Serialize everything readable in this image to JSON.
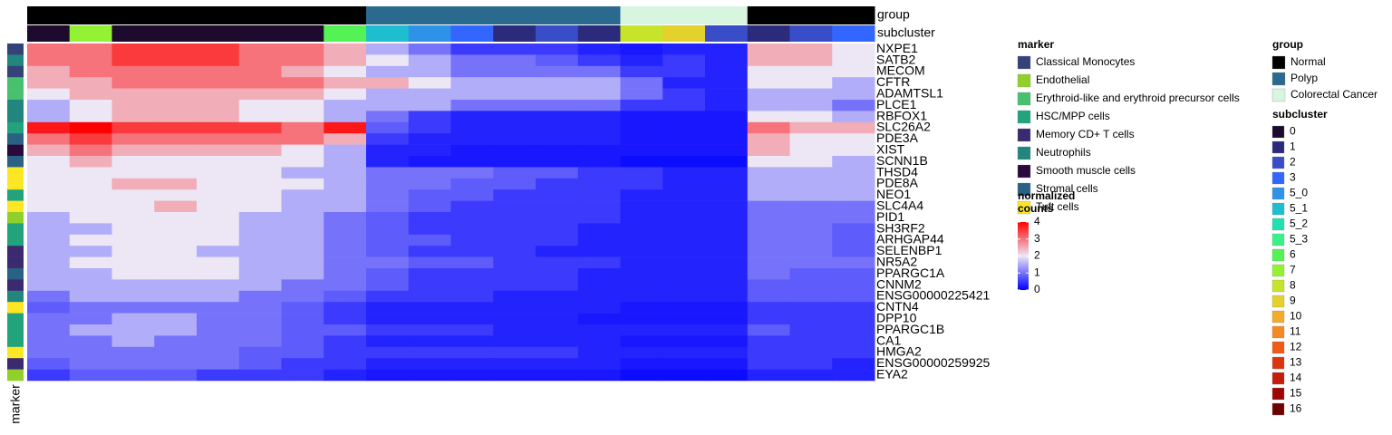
{
  "chart_data": {
    "type": "heatmap",
    "clim": [
      0,
      4
    ],
    "colors": [
      "#0000ff",
      "#ece6f5",
      "#ff0000"
    ],
    "track_labels": {
      "group": "group",
      "subcluster": "subcluster",
      "marker": "marker"
    },
    "group_track": [
      "Normal",
      "Normal",
      "Normal",
      "Normal",
      "Normal",
      "Normal",
      "Normal",
      "Normal",
      "Polyp",
      "Polyp",
      "Polyp",
      "Polyp",
      "Polyp",
      "Polyp",
      "Colorectal Cancer",
      "Colorectal Cancer",
      "Colorectal Cancer",
      "Normal",
      "Normal",
      "Normal"
    ],
    "subcluster_track": [
      "0",
      "7",
      "0",
      "0",
      "0",
      "0",
      "0",
      "6",
      "5_1",
      "5_0",
      "3",
      "1",
      "2",
      "1",
      "8",
      "9",
      "2",
      "1",
      "2",
      "3"
    ],
    "rows": [
      {
        "name": "NXPE1",
        "marker": "Classical Monocytes",
        "values": [
          3,
          3,
          3.5,
          3.5,
          3.5,
          3,
          3,
          2.5,
          1.5,
          1,
          0.5,
          0.5,
          0.5,
          0.3,
          0.2,
          0.3,
          0.3,
          2.5,
          2.5,
          2
        ]
      },
      {
        "name": "SATB2",
        "marker": "Neutrophils",
        "values": [
          3,
          3,
          3.5,
          3.5,
          3.5,
          3,
          3,
          2.5,
          2,
          1.5,
          1,
          1,
          0.8,
          0.5,
          0.3,
          0.5,
          0.3,
          2.5,
          2.5,
          2
        ]
      },
      {
        "name": "MECOM",
        "marker": "Classical Monocytes",
        "values": [
          2.5,
          3,
          3,
          3,
          3,
          3,
          2.5,
          2,
          1.5,
          1.5,
          1,
          1,
          1,
          1,
          0.5,
          0.5,
          0.3,
          2,
          2,
          2
        ]
      },
      {
        "name": "CFTR",
        "marker": "Erythroid-like and erythroid precursor cells",
        "values": [
          2.5,
          2.5,
          3,
          3,
          3,
          3,
          3,
          2.5,
          2.5,
          2,
          1.5,
          1.5,
          1.5,
          1.5,
          1,
          0.3,
          0.3,
          2,
          2,
          1.5
        ]
      },
      {
        "name": "ADAMTSL1",
        "marker": "Erythroid-like and erythroid precursor cells",
        "values": [
          2,
          2.5,
          2.5,
          2.5,
          2.5,
          2.5,
          2.5,
          2,
          1.5,
          1.5,
          1.5,
          1.5,
          1.5,
          1.5,
          1,
          0.5,
          0.3,
          1.5,
          1.5,
          1.5
        ]
      },
      {
        "name": "PLCE1",
        "marker": "Neutrophils",
        "values": [
          1.5,
          2,
          2.5,
          2.5,
          2.5,
          2,
          2,
          1.5,
          1.5,
          1.5,
          1,
          1,
          1,
          1,
          0.5,
          0.5,
          0.3,
          1.5,
          1.5,
          1
        ]
      },
      {
        "name": "RBFOX1",
        "marker": "Neutrophils",
        "values": [
          1.5,
          2,
          2.5,
          2.5,
          2.5,
          2,
          2,
          1.5,
          1,
          0.5,
          0.3,
          0.3,
          0.3,
          0.3,
          0.2,
          0.2,
          0.2,
          2,
          2,
          1.5
        ]
      },
      {
        "name": "SLC26A2",
        "marker": "HSC/MPP cells",
        "values": [
          3.8,
          4,
          3.5,
          3.5,
          3.5,
          3.5,
          3,
          3.8,
          0.8,
          0.5,
          0.3,
          0.3,
          0.3,
          0.3,
          0.2,
          0.2,
          0.2,
          3,
          2.5,
          2.5
        ]
      },
      {
        "name": "PDE3A",
        "marker": "Stromal cells",
        "values": [
          3,
          3.5,
          3,
          3,
          3,
          3,
          3,
          2.5,
          0.5,
          0.3,
          0.3,
          0.3,
          0.3,
          0.3,
          0.2,
          0.2,
          0.2,
          2.5,
          2,
          2
        ]
      },
      {
        "name": "XIST",
        "marker": "Smooth muscle cells",
        "values": [
          2.5,
          3,
          2.5,
          2.5,
          2.5,
          2.5,
          2,
          1.5,
          0.3,
          0.3,
          0.2,
          0.2,
          0.2,
          0.2,
          0.2,
          0.2,
          0.2,
          2.5,
          2,
          2
        ]
      },
      {
        "name": "SCNN1B",
        "marker": "Stromal cells",
        "values": [
          2,
          2.5,
          2,
          2,
          2,
          2,
          2,
          1.5,
          0.3,
          0.2,
          0.2,
          0.2,
          0.2,
          0.2,
          0.1,
          0.1,
          0.1,
          2,
          2,
          1.5
        ]
      },
      {
        "name": "THSD4",
        "marker": "Tuft cells",
        "values": [
          2,
          2,
          2,
          2,
          2,
          2,
          1.5,
          1.5,
          1,
          1,
          1,
          0.8,
          0.8,
          0.5,
          0.5,
          0.3,
          0.3,
          1.5,
          1.5,
          1.5
        ]
      },
      {
        "name": "PDE8A",
        "marker": "Tuft cells",
        "values": [
          2,
          2,
          2.5,
          2.5,
          2,
          2,
          2,
          1.5,
          1,
          1,
          0.8,
          0.8,
          0.5,
          0.5,
          0.5,
          0.3,
          0.3,
          1.5,
          1.5,
          1.5
        ]
      },
      {
        "name": "NEO1",
        "marker": "HSC/MPP cells",
        "values": [
          2,
          2,
          2,
          2,
          2,
          2,
          1.5,
          1.5,
          1,
          0.8,
          0.8,
          0.5,
          0.5,
          0.5,
          0.3,
          0.3,
          0.3,
          1.5,
          1.5,
          1.5
        ]
      },
      {
        "name": "SLC4A4",
        "marker": "Tuft cells",
        "values": [
          2,
          2,
          2,
          2.5,
          2,
          2,
          1.5,
          1.5,
          1,
          0.8,
          0.5,
          0.5,
          0.5,
          0.5,
          0.3,
          0.3,
          0.3,
          1,
          1,
          1
        ]
      },
      {
        "name": "PID1",
        "marker": "Endothelial",
        "values": [
          1.5,
          2,
          2,
          2,
          2,
          1.5,
          1.5,
          1,
          0.8,
          0.5,
          0.5,
          0.5,
          0.5,
          0.5,
          0.3,
          0.3,
          0.3,
          1,
          1,
          1
        ]
      },
      {
        "name": "SH3RF2",
        "marker": "HSC/MPP cells",
        "values": [
          1.5,
          1.5,
          2,
          2,
          2,
          1.5,
          1.5,
          1,
          0.8,
          0.5,
          0.5,
          0.5,
          0.5,
          0.3,
          0.3,
          0.3,
          0.3,
          1,
          1,
          0.8
        ]
      },
      {
        "name": "ARHGAP44",
        "marker": "HSC/MPP cells",
        "values": [
          1.5,
          2,
          2,
          2,
          2,
          1.5,
          1.5,
          1,
          0.8,
          0.8,
          0.5,
          0.5,
          0.5,
          0.3,
          0.3,
          0.3,
          0.3,
          1,
          1,
          0.8
        ]
      },
      {
        "name": "SELENBP1",
        "marker": "Memory CD+ T cells",
        "values": [
          1.5,
          1.5,
          2,
          2,
          1.5,
          1.5,
          1.5,
          1,
          0.8,
          0.5,
          0.5,
          0.5,
          0.3,
          0.3,
          0.3,
          0.3,
          0.3,
          1,
          1,
          0.8
        ]
      },
      {
        "name": "NR5A2",
        "marker": "Memory CD+ T cells",
        "values": [
          1.5,
          2,
          2,
          2,
          2,
          1.5,
          1.5,
          1,
          1,
          0.8,
          0.8,
          0.5,
          0.5,
          0.5,
          0.3,
          0.3,
          0.3,
          1,
          1,
          1
        ]
      },
      {
        "name": "PPARGC1A",
        "marker": "Stromal cells",
        "values": [
          1.5,
          1.5,
          2,
          2,
          2,
          1.5,
          1.5,
          1,
          0.8,
          0.5,
          0.5,
          0.5,
          0.5,
          0.3,
          0.3,
          0.3,
          0.3,
          1,
          0.8,
          0.8
        ]
      },
      {
        "name": "CNNM2",
        "marker": "Memory CD+ T cells",
        "values": [
          1.5,
          1.5,
          1.5,
          1.5,
          1.5,
          1.5,
          1,
          1,
          0.8,
          0.5,
          0.5,
          0.5,
          0.5,
          0.3,
          0.3,
          0.3,
          0.3,
          0.8,
          0.8,
          0.8
        ]
      },
      {
        "name": "ENSG00000225421",
        "marker": "Neutrophils",
        "values": [
          1,
          1.5,
          1.5,
          1.5,
          1.5,
          1,
          1,
          0.8,
          0.5,
          0.5,
          0.5,
          0.3,
          0.3,
          0.3,
          0.3,
          0.3,
          0.3,
          0.8,
          0.8,
          0.8
        ]
      },
      {
        "name": "CNTN4",
        "marker": "Tuft cells",
        "values": [
          0.8,
          1,
          1,
          1,
          1,
          1,
          0.8,
          0.5,
          0.3,
          0.3,
          0.3,
          0.3,
          0.3,
          0.3,
          0.2,
          0.2,
          0.2,
          0.5,
          0.5,
          0.5
        ]
      },
      {
        "name": "DPP10",
        "marker": "HSC/MPP cells",
        "values": [
          1,
          1,
          1.5,
          1.5,
          1,
          1,
          0.8,
          0.5,
          0.3,
          0.3,
          0.3,
          0.3,
          0.3,
          0.2,
          0.2,
          0.2,
          0.2,
          0.5,
          0.5,
          0.5
        ]
      },
      {
        "name": "PPARGC1B",
        "marker": "HSC/MPP cells",
        "values": [
          1,
          1.5,
          1.5,
          1.5,
          1,
          1,
          0.8,
          0.8,
          0.5,
          0.5,
          0.5,
          0.3,
          0.3,
          0.3,
          0.3,
          0.3,
          0.3,
          0.8,
          0.5,
          0.5
        ]
      },
      {
        "name": "CA1",
        "marker": "HSC/MPP cells",
        "values": [
          1,
          1,
          1.5,
          1,
          1,
          1,
          0.8,
          0.5,
          0.3,
          0.3,
          0.3,
          0.3,
          0.3,
          0.3,
          0.2,
          0.2,
          0.2,
          0.5,
          0.5,
          0.5
        ]
      },
      {
        "name": "HMGA2",
        "marker": "Tuft cells",
        "values": [
          1,
          1,
          1,
          1,
          1,
          0.8,
          0.8,
          0.5,
          0.5,
          0.5,
          0.5,
          0.5,
          0.5,
          0.3,
          0.3,
          0.3,
          0.3,
          0.5,
          0.5,
          0.5
        ]
      },
      {
        "name": "ENSG00000259925",
        "marker": "Memory CD+ T cells",
        "values": [
          0.8,
          1,
          1,
          1,
          1,
          0.8,
          0.5,
          0.5,
          0.3,
          0.3,
          0.3,
          0.3,
          0.3,
          0.3,
          0.2,
          0.2,
          0.2,
          0.5,
          0.5,
          0.3
        ]
      },
      {
        "name": "EYA2",
        "marker": "Endothelial",
        "values": [
          0.5,
          0.8,
          0.8,
          0.8,
          0.5,
          0.5,
          0.5,
          0.3,
          0.2,
          0.2,
          0.2,
          0.2,
          0.2,
          0.2,
          0.1,
          0.1,
          0.1,
          0.3,
          0.3,
          0.3
        ]
      }
    ],
    "marker_legend": {
      "title": "marker",
      "items": [
        {
          "name": "Classical Monocytes",
          "color": "#35427a"
        },
        {
          "name": "Endothelial",
          "color": "#8fd12a"
        },
        {
          "name": "Erythroid-like and erythroid precursor cells",
          "color": "#47c16e"
        },
        {
          "name": "HSC/MPP cells",
          "color": "#22a37c"
        },
        {
          "name": "Memory CD+ T cells",
          "color": "#3b2a6f"
        },
        {
          "name": "Neutrophils",
          "color": "#22867f"
        },
        {
          "name": "Smooth muscle cells",
          "color": "#2a0a3c"
        },
        {
          "name": "Stromal cells",
          "color": "#2a6285"
        },
        {
          "name": "Tuft cells",
          "color": "#fde725"
        }
      ]
    },
    "color_legend": {
      "title": [
        "normalized",
        "counts"
      ],
      "ticks": [
        0,
        1,
        2,
        3,
        4
      ]
    },
    "group_legend": {
      "title": "group",
      "items": [
        {
          "name": "Normal",
          "color": "#000000"
        },
        {
          "name": "Polyp",
          "color": "#2a6a8f"
        },
        {
          "name": "Colorectal Cancer",
          "color": "#d8f5e0"
        }
      ]
    },
    "subcluster_legend": {
      "title": "subcluster",
      "items": [
        {
          "name": "0",
          "color": "#1c0b2c"
        },
        {
          "name": "1",
          "color": "#2c2a7a"
        },
        {
          "name": "2",
          "color": "#3a4dc8"
        },
        {
          "name": "3",
          "color": "#3366ff"
        },
        {
          "name": "5_0",
          "color": "#2e93e8"
        },
        {
          "name": "5_1",
          "color": "#1fbdd0"
        },
        {
          "name": "5_2",
          "color": "#22e0b0"
        },
        {
          "name": "5_3",
          "color": "#3bf08a"
        },
        {
          "name": "6",
          "color": "#55f255"
        },
        {
          "name": "7",
          "color": "#93f233"
        },
        {
          "name": "8",
          "color": "#c6e52a"
        },
        {
          "name": "9",
          "color": "#e3d22d"
        },
        {
          "name": "10",
          "color": "#f2ab2a"
        },
        {
          "name": "11",
          "color": "#f58a22"
        },
        {
          "name": "12",
          "color": "#ef5a17"
        },
        {
          "name": "13",
          "color": "#dd3410"
        },
        {
          "name": "14",
          "color": "#c41b0a"
        },
        {
          "name": "15",
          "color": "#9e0606"
        },
        {
          "name": "16",
          "color": "#6e0000"
        }
      ]
    }
  }
}
